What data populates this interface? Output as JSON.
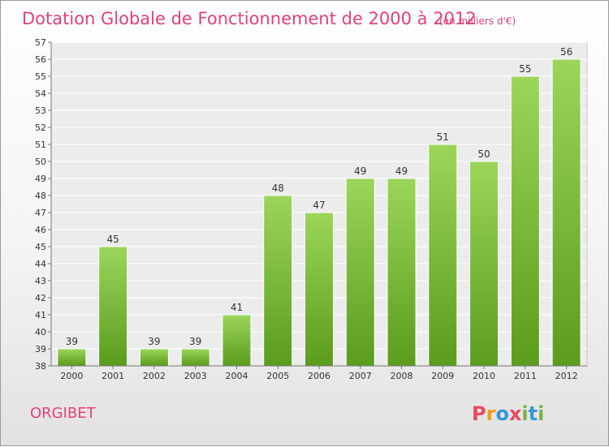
{
  "chart_data": {
    "type": "bar",
    "title": "Dotation Globale de Fonctionnement de 2000 à 2012",
    "unit_note": "(en milliers d'€)",
    "categories": [
      "2000",
      "2001",
      "2002",
      "2003",
      "2004",
      "2005",
      "2006",
      "2007",
      "2008",
      "2009",
      "2010",
      "2011",
      "2012"
    ],
    "values": [
      39,
      45,
      39,
      39,
      41,
      48,
      47,
      49,
      49,
      51,
      50,
      55,
      56
    ],
    "xlabel": "",
    "ylabel": "",
    "ylim": [
      38,
      57
    ],
    "yticks": [
      38,
      39,
      40,
      41,
      42,
      43,
      44,
      45,
      46,
      47,
      48,
      49,
      50,
      51,
      52,
      53,
      54,
      55,
      56,
      57
    ],
    "grid": true,
    "bar_color": "#7cc52f",
    "bar_color_light": "#9bd65a",
    "bar_color_dark": "#5a9c1c"
  },
  "commune": "ORGIBET",
  "logo": {
    "letters": [
      "P",
      "r",
      "o",
      "x",
      "i",
      "t",
      "i"
    ],
    "colors": [
      "#e84a5f",
      "#f39c12",
      "#3498db",
      "#e84a5f",
      "#7cb342",
      "#3498db",
      "#7cb342"
    ]
  },
  "accent_color": "#e4407a"
}
